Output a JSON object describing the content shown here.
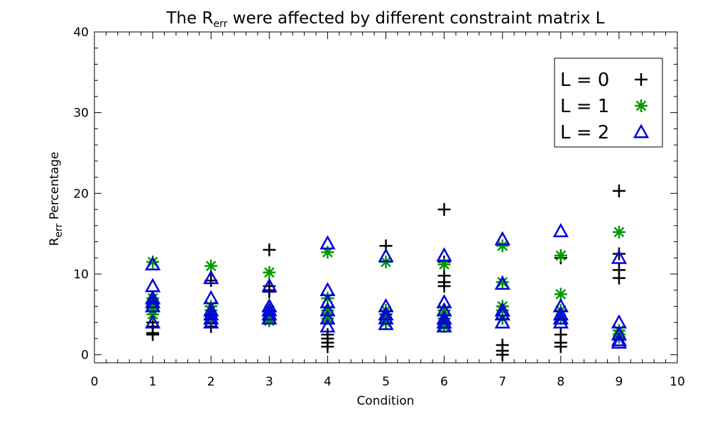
{
  "chart_data": {
    "type": "scatter",
    "title": {
      "prefix": "The R",
      "subscript": "err",
      "suffix": " were affected by different constraint matrix L"
    },
    "xlabel": "Condition",
    "ylabel": {
      "prefix": "R",
      "subscript": "err",
      "suffix": " Percentage"
    },
    "xlim": [
      0,
      10
    ],
    "ylim": [
      -1,
      40
    ],
    "x_ticks": [
      0,
      1,
      2,
      3,
      4,
      5,
      6,
      7,
      8,
      9,
      10
    ],
    "y_ticks": [
      0,
      10,
      20,
      30,
      40
    ],
    "grid": false,
    "legend_position": "top-right",
    "series": [
      {
        "name": "L = 0",
        "marker": "plus",
        "color": "#000000",
        "points": [
          [
            1,
            2.5
          ],
          [
            1,
            2.7
          ],
          [
            1,
            3.5
          ],
          [
            1,
            4.0
          ],
          [
            2,
            3.5
          ],
          [
            2,
            4.0
          ],
          [
            2,
            9.2
          ],
          [
            2,
            5.0
          ],
          [
            3,
            13.0
          ],
          [
            3,
            8.0
          ],
          [
            3,
            8.5
          ],
          [
            3,
            7.8
          ],
          [
            4,
            1.0
          ],
          [
            4,
            1.5
          ],
          [
            4,
            2.0
          ],
          [
            4,
            2.5
          ],
          [
            5,
            13.5
          ],
          [
            5,
            5.0
          ],
          [
            5,
            4.0
          ],
          [
            6,
            18.0
          ],
          [
            6,
            8.5
          ],
          [
            6,
            9.0
          ],
          [
            6,
            9.8
          ],
          [
            6,
            11.5
          ],
          [
            7,
            0.0
          ],
          [
            7,
            0.5
          ],
          [
            7,
            1.2
          ],
          [
            8,
            1.0
          ],
          [
            8,
            1.5
          ],
          [
            8,
            2.5
          ],
          [
            8,
            12.0
          ],
          [
            9,
            20.3
          ],
          [
            9,
            9.5
          ],
          [
            9,
            10.5
          ],
          [
            9,
            12.5
          ]
        ]
      },
      {
        "name": "L = 1",
        "marker": "asterisk",
        "color": "#009900",
        "points": [
          [
            1,
            11.5
          ],
          [
            1,
            7.0
          ],
          [
            1,
            6.5
          ],
          [
            1,
            6.2
          ],
          [
            1,
            5.5
          ],
          [
            1,
            5.0
          ],
          [
            2,
            11.0
          ],
          [
            2,
            6.0
          ],
          [
            2,
            5.5
          ],
          [
            2,
            5.0
          ],
          [
            2,
            4.5
          ],
          [
            3,
            10.2
          ],
          [
            3,
            5.5
          ],
          [
            3,
            5.0
          ],
          [
            3,
            4.5
          ],
          [
            3,
            4.2
          ],
          [
            4,
            12.7
          ],
          [
            4,
            7.0
          ],
          [
            4,
            5.5
          ],
          [
            4,
            4.5
          ],
          [
            5,
            11.5
          ],
          [
            5,
            5.5
          ],
          [
            5,
            4.5
          ],
          [
            5,
            4.0
          ],
          [
            6,
            11.2
          ],
          [
            6,
            5.5
          ],
          [
            6,
            4.5
          ],
          [
            6,
            3.8
          ],
          [
            6,
            3.5
          ],
          [
            7,
            13.5
          ],
          [
            7,
            9.0
          ],
          [
            7,
            6.0
          ],
          [
            7,
            5.5
          ],
          [
            7,
            4.5
          ],
          [
            8,
            12.3
          ],
          [
            8,
            7.5
          ],
          [
            8,
            5.5
          ],
          [
            8,
            4.5
          ],
          [
            9,
            15.2
          ],
          [
            9,
            3.0
          ],
          [
            9,
            2.5
          ],
          [
            9,
            2.2
          ]
        ]
      },
      {
        "name": "L = 2",
        "marker": "triangle",
        "color": "#0000dd",
        "points": [
          [
            1,
            11.2
          ],
          [
            1,
            8.5
          ],
          [
            1,
            7.0
          ],
          [
            1,
            6.5
          ],
          [
            1,
            6.0
          ],
          [
            1,
            4.0
          ],
          [
            2,
            9.5
          ],
          [
            2,
            7.0
          ],
          [
            2,
            5.5
          ],
          [
            2,
            5.0
          ],
          [
            2,
            4.5
          ],
          [
            2,
            4.0
          ],
          [
            3,
            8.5
          ],
          [
            3,
            6.0
          ],
          [
            3,
            5.5
          ],
          [
            3,
            5.0
          ],
          [
            3,
            4.5
          ],
          [
            4,
            13.8
          ],
          [
            4,
            8.0
          ],
          [
            4,
            6.5
          ],
          [
            4,
            5.5
          ],
          [
            4,
            4.5
          ],
          [
            4,
            3.5
          ],
          [
            5,
            12.2
          ],
          [
            5,
            6.0
          ],
          [
            5,
            5.0
          ],
          [
            5,
            4.5
          ],
          [
            5,
            3.8
          ],
          [
            6,
            12.3
          ],
          [
            6,
            6.5
          ],
          [
            6,
            5.5
          ],
          [
            6,
            4.5
          ],
          [
            6,
            4.0
          ],
          [
            6,
            3.5
          ],
          [
            7,
            14.3
          ],
          [
            7,
            8.8
          ],
          [
            7,
            5.5
          ],
          [
            7,
            5.0
          ],
          [
            7,
            4.0
          ],
          [
            8,
            15.3
          ],
          [
            8,
            6.0
          ],
          [
            8,
            5.0
          ],
          [
            8,
            4.5
          ],
          [
            8,
            4.0
          ],
          [
            9,
            12.0
          ],
          [
            9,
            4.0
          ],
          [
            9,
            2.5
          ],
          [
            9,
            1.8
          ],
          [
            9,
            1.5
          ]
        ]
      }
    ]
  }
}
